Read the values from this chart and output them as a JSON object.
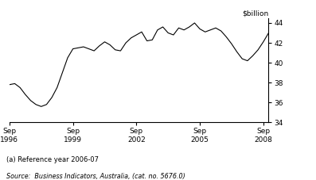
{
  "title": "$billion",
  "footnote": "(a) Reference year 2006-07",
  "source": "Source:  Business Indicators, Australia, (cat. no. 5676.0)",
  "line_color": "#000000",
  "background_color": "#ffffff",
  "ylim": [
    34,
    44.5
  ],
  "yticks": [
    34,
    36,
    38,
    40,
    42,
    44
  ],
  "xtick_labels": [
    "Sep\n1996",
    "Sep\n1999",
    "Sep\n2002",
    "Sep\n2005",
    "Sep\n2008"
  ],
  "xtick_positions": [
    0,
    12,
    24,
    36,
    48
  ],
  "x_values": [
    0,
    1,
    2,
    3,
    4,
    5,
    6,
    7,
    8,
    9,
    10,
    11,
    12,
    13,
    14,
    15,
    16,
    17,
    18,
    19,
    20,
    21,
    22,
    23,
    24,
    25,
    26,
    27,
    28,
    29,
    30,
    31,
    32,
    33,
    34,
    35,
    36,
    37,
    38,
    39,
    40,
    41,
    42,
    43,
    44,
    45,
    46,
    47,
    48,
    49
  ],
  "y_values": [
    37.8,
    37.9,
    37.5,
    36.8,
    36.2,
    35.8,
    35.6,
    35.8,
    36.5,
    37.5,
    39.0,
    40.5,
    41.4,
    41.5,
    41.6,
    41.4,
    41.2,
    41.7,
    42.1,
    41.8,
    41.3,
    41.2,
    42.0,
    42.5,
    42.8,
    43.1,
    42.2,
    42.3,
    43.3,
    43.6,
    43.0,
    42.8,
    43.5,
    43.3,
    43.6,
    44.0,
    43.4,
    43.1,
    43.3,
    43.5,
    43.2,
    42.6,
    41.9,
    41.1,
    40.4,
    40.2,
    40.7,
    41.3,
    42.1,
    43.0
  ]
}
